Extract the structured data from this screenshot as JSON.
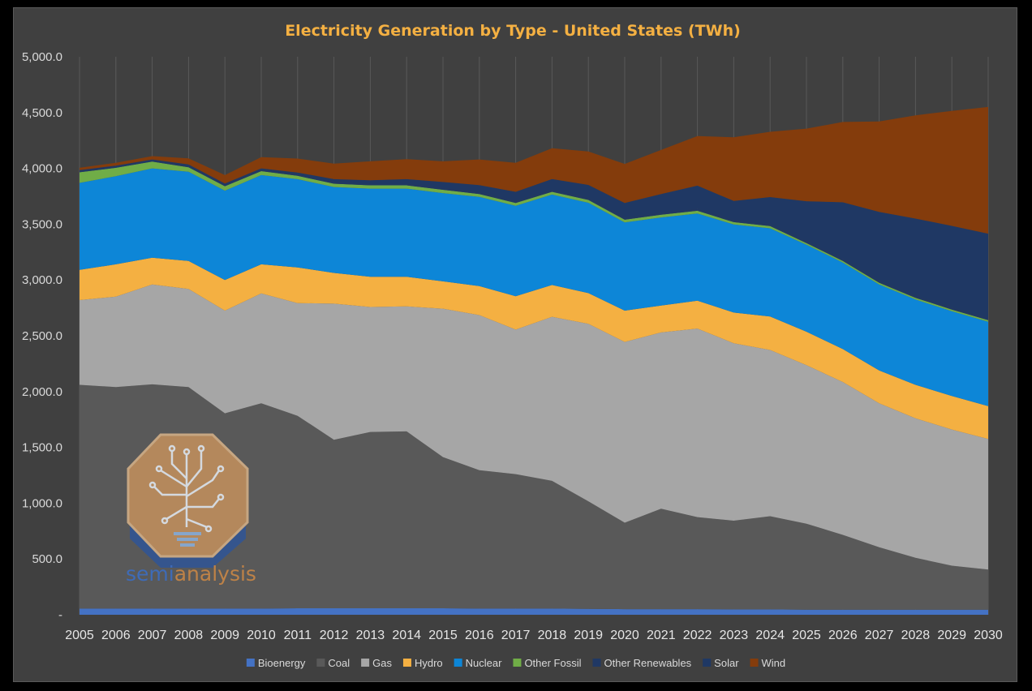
{
  "chart_data": {
    "type": "area",
    "stacked": true,
    "title": "Electricity Generation by Type - United States (TWh)",
    "x": [
      "2005",
      "2006",
      "2007",
      "2008",
      "2009",
      "2010",
      "2011",
      "2012",
      "2013",
      "2014",
      "2015",
      "2016",
      "2017",
      "2018",
      "2019",
      "2020",
      "2021",
      "2022",
      "2023",
      "2024",
      "2025",
      "2026",
      "2027",
      "2028",
      "2029",
      "2030"
    ],
    "ylim": [
      0,
      5000
    ],
    "yticks": [
      "-",
      "500.0",
      "1,000.0",
      "1,500.0",
      "2,000.0",
      "2,500.0",
      "3,000.0",
      "3,500.0",
      "4,000.0",
      "4,500.0",
      "5,000.0"
    ],
    "grid": "vertical",
    "legend_position": "bottom",
    "series": [
      {
        "name": "Bioenergy",
        "color": "#4472c4",
        "values": [
          55,
          55,
          55,
          55,
          55,
          55,
          58,
          58,
          58,
          58,
          58,
          55,
          55,
          55,
          52,
          50,
          50,
          50,
          48,
          48,
          46,
          46,
          45,
          45,
          45,
          45
        ]
      },
      {
        "name": "Coal",
        "color": "#595959",
        "values": [
          2005,
          1985,
          2010,
          1985,
          1750,
          1840,
          1725,
          1510,
          1580,
          1585,
          1355,
          1240,
          1205,
          1145,
          965,
          775,
          900,
          825,
          795,
          835,
          770,
          670,
          560,
          465,
          395,
          360
        ]
      },
      {
        "name": "Gas",
        "color": "#a6a6a6",
        "values": [
          760,
          810,
          895,
          880,
          920,
          985,
          1010,
          1220,
          1120,
          1120,
          1330,
          1390,
          1295,
          1470,
          1590,
          1620,
          1580,
          1690,
          1590,
          1490,
          1420,
          1370,
          1290,
          1250,
          1220,
          1170
        ]
      },
      {
        "name": "Hydro",
        "color": "#f4b042",
        "values": [
          270,
          290,
          240,
          250,
          275,
          260,
          320,
          275,
          270,
          265,
          245,
          260,
          300,
          285,
          275,
          280,
          240,
          250,
          275,
          300,
          300,
          295,
          295,
          300,
          300,
          295
        ]
      },
      {
        "name": "Nuclear",
        "color": "#0d86d7",
        "values": [
          780,
          790,
          800,
          800,
          800,
          800,
          790,
          770,
          790,
          790,
          790,
          800,
          810,
          810,
          810,
          790,
          790,
          780,
          790,
          790,
          780,
          775,
          770,
          765,
          760,
          755
        ]
      },
      {
        "name": "Other Fossil",
        "color": "#70ad47",
        "values": [
          95,
          75,
          60,
          40,
          40,
          35,
          30,
          30,
          30,
          30,
          30,
          25,
          25,
          25,
          25,
          25,
          25,
          25,
          20,
          20,
          15,
          15,
          15,
          15,
          15,
          15
        ]
      },
      {
        "name": "Other Renewables",
        "color": "#203864",
        "values": [
          15,
          15,
          15,
          15,
          15,
          15,
          15,
          15,
          15,
          15,
          15,
          15,
          15,
          15,
          15,
          15,
          15,
          15,
          15,
          15,
          15,
          15,
          15,
          15,
          15,
          15
        ]
      },
      {
        "name": "Solar",
        "color": "#1f3864",
        "values": [
          5,
          5,
          5,
          10,
          10,
          10,
          15,
          25,
          30,
          40,
          55,
          65,
          85,
          100,
          120,
          135,
          170,
          210,
          175,
          245,
          360,
          510,
          620,
          695,
          735,
          760
        ]
      },
      {
        "name": "Wind",
        "color": "#843c0c",
        "values": [
          20,
          25,
          30,
          55,
          75,
          100,
          125,
          140,
          170,
          180,
          185,
          230,
          260,
          275,
          300,
          350,
          395,
          445,
          570,
          585,
          650,
          720,
          810,
          925,
          1030,
          1135
        ]
      }
    ]
  },
  "logo": {
    "text_part1": "semi",
    "text_part2": "analysis"
  }
}
